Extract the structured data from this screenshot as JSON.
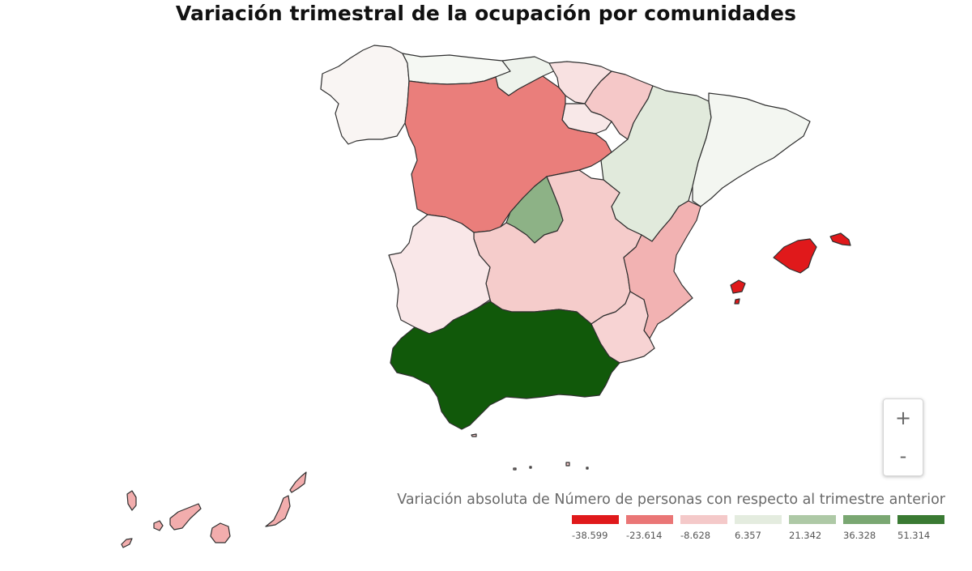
{
  "title": "Variación trimestral de la ocupación por comunidades",
  "legend": {
    "title": "Variación absoluta de Número de personas con respecto al trimestre anterior",
    "bins": [
      {
        "label": "-38.599",
        "color": "#e0191b"
      },
      {
        "label": "-23.614",
        "color": "#ea7676"
      },
      {
        "label": "-8.628",
        "color": "#f4c9c9"
      },
      {
        "label": "6.357",
        "color": "#e4ecdf"
      },
      {
        "label": "21.342",
        "color": "#aec9a6"
      },
      {
        "label": "36.328",
        "color": "#7aa772"
      },
      {
        "label": "51.314",
        "color": "#3a7a33"
      }
    ]
  },
  "zoom": {
    "in_label": "+",
    "out_label": "-"
  },
  "regions": [
    {
      "name": "Galicia",
      "color": "#f9f5f3"
    },
    {
      "name": "Asturias",
      "color": "#f5f8f3"
    },
    {
      "name": "Cantabria",
      "color": "#eef3ec"
    },
    {
      "name": "País Vasco",
      "color": "#f8e1e1"
    },
    {
      "name": "Navarra",
      "color": "#f5c8c8"
    },
    {
      "name": "La Rioja",
      "color": "#f8e8e8"
    },
    {
      "name": "Aragón",
      "color": "#e1eadc"
    },
    {
      "name": "Cataluña",
      "color": "#f3f6f1"
    },
    {
      "name": "Castilla y León",
      "color": "#ea7e7b"
    },
    {
      "name": "Comunidad de Madrid",
      "color": "#8db286"
    },
    {
      "name": "Castilla-La Mancha",
      "color": "#f5cccb"
    },
    {
      "name": "Extremadura",
      "color": "#f9e7e8"
    },
    {
      "name": "Comunitat Valenciana",
      "color": "#f2b2b2"
    },
    {
      "name": "Región de Murcia",
      "color": "#f7d3d3"
    },
    {
      "name": "Andalucía",
      "color": "#11590a"
    },
    {
      "name": "Illes Balears",
      "color": "#e0191b"
    },
    {
      "name": "Canarias",
      "color": "#f2adad"
    },
    {
      "name": "Ceuta y Melilla",
      "color": "#f5c8c8"
    }
  ]
}
